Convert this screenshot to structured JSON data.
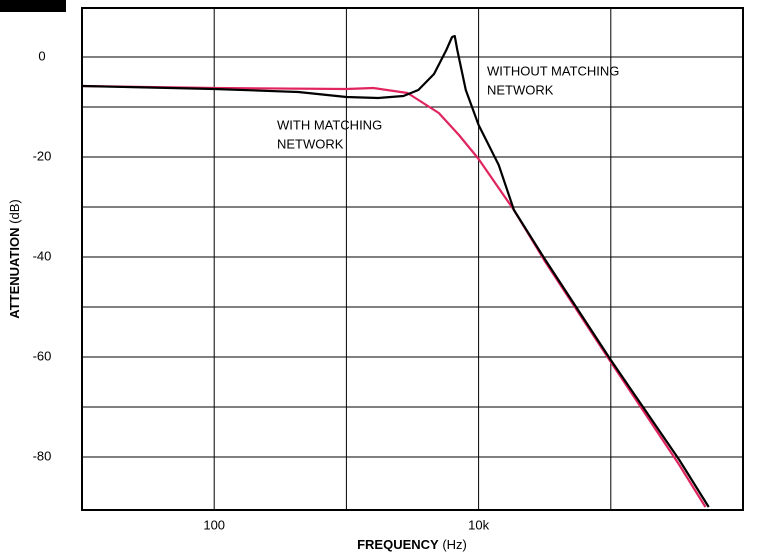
{
  "chart_data": {
    "type": "line",
    "x_label": {
      "bold": "FREQUENCY",
      "unit": "(Hz)"
    },
    "y_label": {
      "bold": "ATTENUATION",
      "unit": "(dB)"
    },
    "x_log": true,
    "xlim": [
      10,
      1000000
    ],
    "ylim": [
      -90.6,
      9.8
    ],
    "xticks": [
      100,
      {
        "value": 10000,
        "label": "10k"
      }
    ],
    "x_grid": [
      1000,
      100000
    ],
    "yticks": [
      0,
      -20,
      -40,
      -60,
      -80
    ],
    "y_grid": [
      -10,
      -30,
      -50,
      -70
    ],
    "grid": true,
    "series": [
      {
        "name": "WITHOUT MATCHING NETWORK",
        "color": "#000000",
        "x": [
          10,
          100,
          433,
          1000,
          1740,
          2700,
          3500,
          4600,
          5700,
          6300,
          6600,
          6900,
          8000,
          10000,
          14200,
          18500,
          32000,
          100000,
          330000,
          550000
        ],
        "values": [
          -5.8,
          -6.4,
          -7,
          -8,
          -8.2,
          -7.8,
          -6.6,
          -3.4,
          1.4,
          4,
          4.2,
          1.4,
          -6.6,
          -13.6,
          -21.6,
          -30.6,
          -40.6,
          -60.6,
          -80.6,
          -90
        ]
      },
      {
        "name": "WITH MATCHING NETWORK",
        "color": "#e0245e",
        "x": [
          10,
          100,
          1000,
          1600,
          2900,
          5000,
          7100,
          10000,
          18500,
          32000,
          100000,
          330000,
          520000
        ],
        "values": [
          -5.8,
          -6.2,
          -6.4,
          -6.2,
          -7.2,
          -11.2,
          -15.6,
          -20.4,
          -30.6,
          -41,
          -61,
          -81.6,
          -90
        ]
      }
    ],
    "annotations": [
      {
        "lines": [
          "WITHOUT MATCHING",
          "NETWORK"
        ],
        "color": "#000000"
      },
      {
        "lines": [
          "WITH MATCHING",
          "NETWORK"
        ],
        "color": "#e0245e"
      }
    ]
  }
}
